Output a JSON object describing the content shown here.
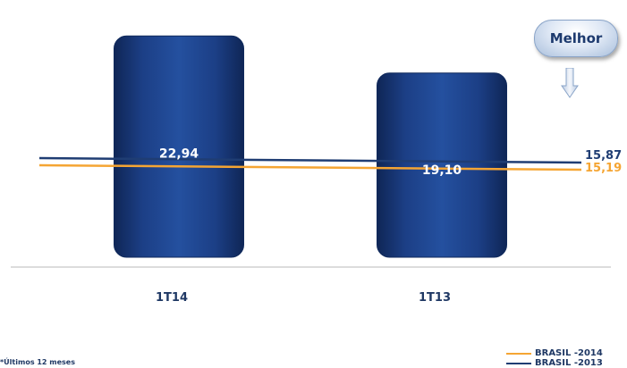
{
  "badge": {
    "label": "Melhor"
  },
  "footnote": "*Últimos 12 meses",
  "colors": {
    "bar": "#1c3f86",
    "bar_dark": "#0f2656",
    "series_2014": "#f5a533",
    "series_2013": "#1f3d73"
  },
  "chart_data": {
    "type": "bar",
    "categories": [
      "1T14",
      "1T13"
    ],
    "values": [
      22.94,
      19.1
    ],
    "value_labels": [
      "22,94",
      "19,10"
    ],
    "reference_lines": [
      {
        "name": "BRASIL -2014",
        "start": 15.19,
        "end": 15.19,
        "label": "15,19",
        "color": "#f5a533"
      },
      {
        "name": "BRASIL -2013",
        "start": 15.87,
        "end": 15.87,
        "label": "15,87",
        "color": "#1f3d73"
      }
    ],
    "legend_position": "bottom-right",
    "ylim": [
      0,
      25
    ],
    "grid": false
  }
}
